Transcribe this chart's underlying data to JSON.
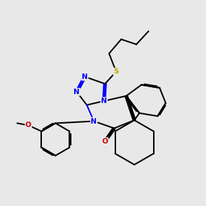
{
  "background_color": "#e8e8e8",
  "bond_color": "#000000",
  "atom_colors": {
    "N": "#0000ff",
    "O": "#cc0000",
    "S": "#bbaa00"
  },
  "bond_width": 1.5,
  "dbo": 0.055
}
